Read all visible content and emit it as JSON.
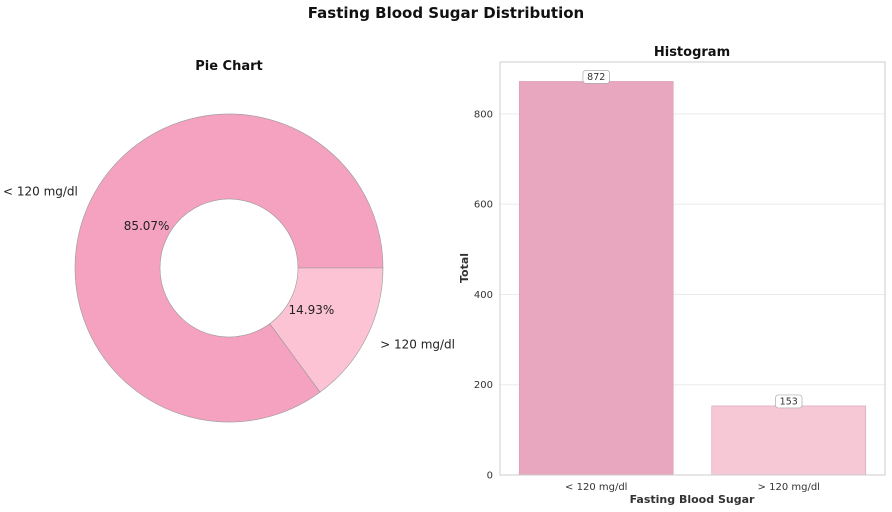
{
  "title": "Fasting Blood Sugar Distribution",
  "chart_data": [
    {
      "type": "pie",
      "donut": true,
      "title": "Pie Chart",
      "categories": [
        "< 120 mg/dl",
        "> 120 mg/dl"
      ],
      "values": [
        872,
        153
      ],
      "percent_labels": [
        "85.07%",
        "14.93%"
      ],
      "colors": [
        "#f4a2bf",
        "#fcc3d5"
      ]
    },
    {
      "type": "bar",
      "title": "Histogram",
      "categories": [
        "< 120 mg/dl",
        "> 120 mg/dl"
      ],
      "values": [
        872,
        153
      ],
      "value_labels": [
        "872",
        "153"
      ],
      "xlabel": "Fasting Blood Sugar",
      "ylabel": "Total",
      "ylim": [
        0,
        915
      ],
      "yticks": [
        0,
        200,
        400,
        600,
        800
      ],
      "grid": true,
      "colors": [
        "#e9a6bf",
        "#f6c8d6"
      ]
    }
  ]
}
